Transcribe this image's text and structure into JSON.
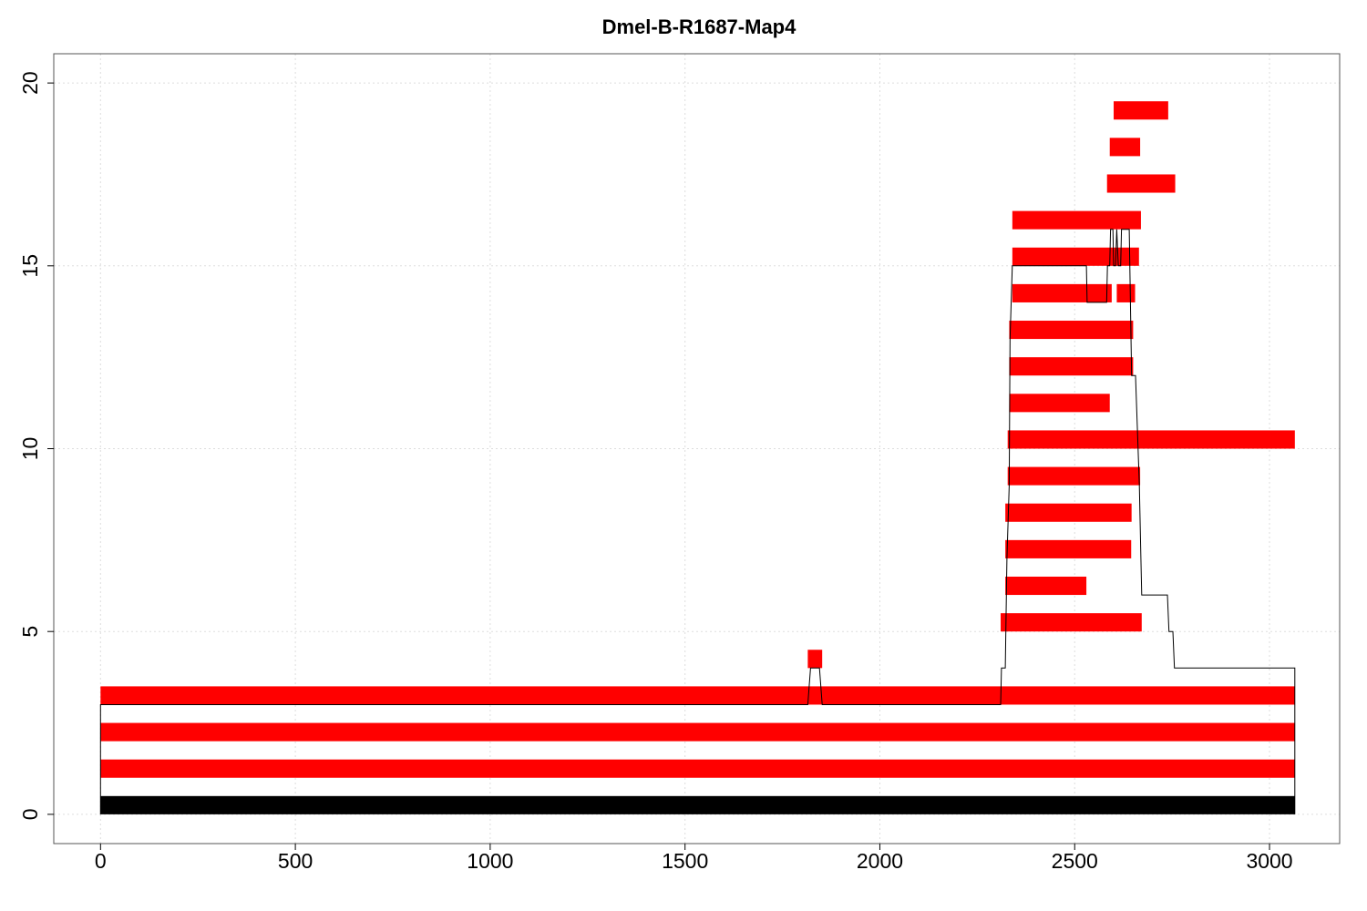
{
  "chart_data": {
    "type": "bar",
    "title": "Dmel-B-R1687-Map4",
    "xlabel": "",
    "ylabel": "",
    "xlim": [
      -120,
      3180
    ],
    "ylim": [
      -0.8,
      20.8
    ],
    "x_ticks": [
      0,
      500,
      1000,
      1500,
      2000,
      2500,
      3000
    ],
    "y_ticks": [
      0,
      5,
      10,
      15,
      20
    ],
    "grid": true,
    "colors": {
      "reference": "#000000",
      "reads": "#ff0000",
      "coverage": "#000000"
    },
    "reference": {
      "start": 0,
      "end": 3065,
      "y0": 0,
      "y1": 0.5
    },
    "reads": [
      {
        "start": 0,
        "end": 3065,
        "y0": 1,
        "y1": 1.5
      },
      {
        "start": 0,
        "end": 3065,
        "y0": 2,
        "y1": 2.5
      },
      {
        "start": 0,
        "end": 3065,
        "y0": 3,
        "y1": 3.5
      },
      {
        "start": 1815,
        "end": 1852,
        "y0": 4,
        "y1": 4.5
      },
      {
        "start": 2310,
        "end": 2672,
        "y0": 5,
        "y1": 5.5
      },
      {
        "start": 2322,
        "end": 2530,
        "y0": 6,
        "y1": 6.5
      },
      {
        "start": 2322,
        "end": 2645,
        "y0": 7,
        "y1": 7.5
      },
      {
        "start": 2322,
        "end": 2646,
        "y0": 8,
        "y1": 8.5
      },
      {
        "start": 2328,
        "end": 2668,
        "y0": 9,
        "y1": 9.5
      },
      {
        "start": 2328,
        "end": 3065,
        "y0": 10,
        "y1": 10.5
      },
      {
        "start": 2332,
        "end": 2590,
        "y0": 11,
        "y1": 11.5
      },
      {
        "start": 2332,
        "end": 2650,
        "y0": 12,
        "y1": 12.5
      },
      {
        "start": 2332,
        "end": 2650,
        "y0": 13,
        "y1": 13.5
      },
      {
        "start": 2340,
        "end": 2595,
        "y0": 14,
        "y1": 14.5
      },
      {
        "start": 2608,
        "end": 2655,
        "y0": 14,
        "y1": 14.5
      },
      {
        "start": 2340,
        "end": 2665,
        "y0": 15,
        "y1": 15.5
      },
      {
        "start": 2340,
        "end": 2670,
        "y0": 16,
        "y1": 16.5
      },
      {
        "start": 2583,
        "end": 2758,
        "y0": 17,
        "y1": 17.5
      },
      {
        "start": 2590,
        "end": 2668,
        "y0": 18,
        "y1": 18.5
      },
      {
        "start": 2600,
        "end": 2740,
        "y0": 19,
        "y1": 19.5
      }
    ],
    "coverage": [
      [
        0,
        0
      ],
      [
        0,
        3
      ],
      [
        1815,
        3
      ],
      [
        1822,
        4
      ],
      [
        1845,
        4
      ],
      [
        1852,
        3
      ],
      [
        2310,
        3
      ],
      [
        2312,
        4
      ],
      [
        2322,
        4
      ],
      [
        2326,
        7
      ],
      [
        2332,
        9
      ],
      [
        2334,
        13
      ],
      [
        2340,
        15
      ],
      [
        2530,
        15
      ],
      [
        2532,
        14
      ],
      [
        2582,
        14
      ],
      [
        2584,
        15
      ],
      [
        2590,
        15
      ],
      [
        2592,
        16
      ],
      [
        2598,
        16
      ],
      [
        2600,
        15
      ],
      [
        2605,
        15
      ],
      [
        2608,
        16
      ],
      [
        2612,
        15
      ],
      [
        2618,
        15
      ],
      [
        2620,
        16
      ],
      [
        2640,
        16
      ],
      [
        2646,
        12
      ],
      [
        2656,
        12
      ],
      [
        2666,
        9
      ],
      [
        2670,
        7
      ],
      [
        2672,
        6
      ],
      [
        2738,
        6
      ],
      [
        2742,
        5
      ],
      [
        2752,
        5
      ],
      [
        2756,
        4
      ],
      [
        3065,
        4
      ],
      [
        3065,
        0
      ]
    ]
  }
}
